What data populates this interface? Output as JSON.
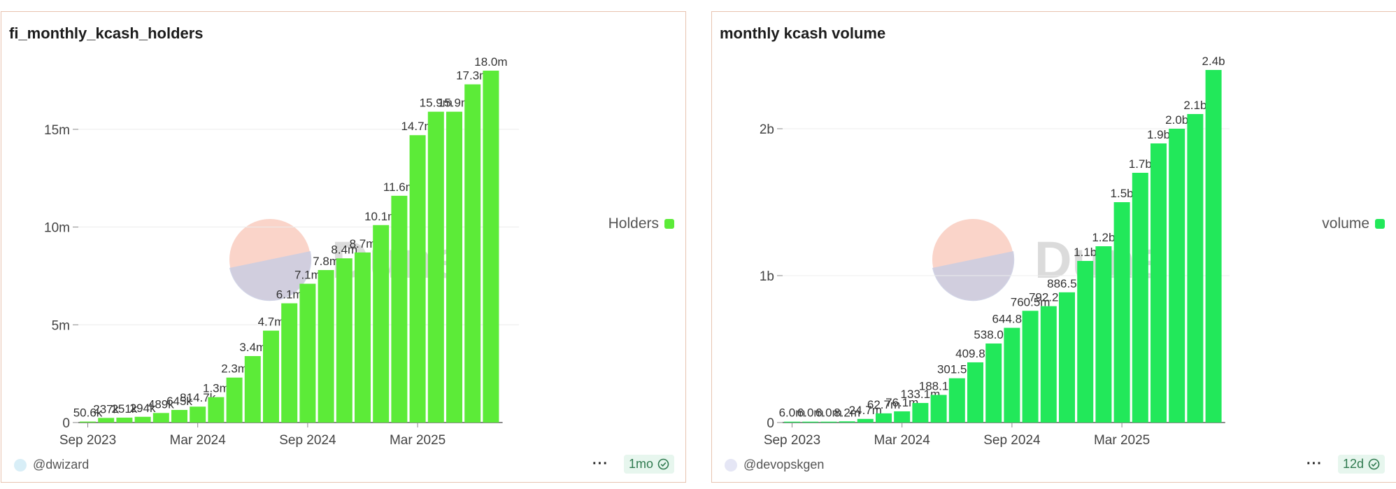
{
  "panels": [
    {
      "title": "fi_monthly_kcash_holders",
      "legend_label": "Holders",
      "user": "@dwizard",
      "age": "1mo",
      "bar_color": "#5ceb38",
      "avatar_color": "#d8eef7"
    },
    {
      "title": "monthly kcash volume",
      "legend_label": "volume",
      "user": "@devopskgen",
      "age": "12d",
      "bar_color": "#22e85a",
      "avatar_color": "#e5e6f5"
    }
  ],
  "watermark": "Dune",
  "chart_data": [
    {
      "type": "bar",
      "title": "fi_monthly_kcash_holders",
      "series": [
        {
          "name": "Holders",
          "values": [
            50600,
            237000,
            251000,
            294000,
            489000,
            645000,
            814700,
            1300000,
            2300000,
            3400000,
            4700000,
            6100000,
            7100000,
            7800000,
            8400000,
            8700000,
            10100000,
            11600000,
            14700000,
            15900000,
            15900000,
            17300000,
            18000000
          ]
        }
      ],
      "categories": [
        "2023-09",
        "2023-10",
        "2023-11",
        "2023-12",
        "2024-01",
        "2024-02",
        "2024-03",
        "2024-04",
        "2024-05",
        "2024-06",
        "2024-07",
        "2024-08",
        "2024-09",
        "2024-10",
        "2024-11",
        "2024-12",
        "2025-01",
        "2025-02",
        "2025-03",
        "2025-04",
        "2025-05",
        "2025-06",
        "2025-07"
      ],
      "labels": [
        "50.6k",
        "237k",
        "251k",
        "294k",
        "489k",
        "645k",
        "814.7k",
        "1.3m",
        "2.3m",
        "3.4m",
        "4.7m",
        "6.1m",
        "7.1m",
        "7.8m",
        "8.4m",
        "8.7m",
        "10.1m",
        "11.6m",
        "14.7m",
        "15.9m",
        "15.9m",
        "17.3m",
        "18.0m"
      ],
      "x_tick_labels": [
        "Sep 2023",
        "Mar 2024",
        "Sep 2024",
        "Mar 2025"
      ],
      "x_tick_index": [
        0,
        6,
        12,
        18
      ],
      "y_ticks": [
        0,
        5000000,
        10000000,
        15000000
      ],
      "y_tick_labels": [
        "0",
        "5m",
        "10m",
        "15m"
      ],
      "ylim": [
        0,
        18000000
      ],
      "grid": true,
      "legend_position": "right"
    },
    {
      "type": "bar",
      "title": "monthly kcash volume",
      "series": [
        {
          "name": "volume",
          "values": [
            6000000,
            6000000,
            6000000,
            8200000,
            24700000,
            62700000,
            76100000,
            133100000,
            188100000,
            301500000,
            409800000,
            538000000,
            644800000,
            760500000,
            792200000,
            886500000,
            1100000000,
            1200000000,
            1500000000,
            1700000000,
            1900000000,
            2000000000,
            2100000000,
            2400000000
          ]
        }
      ],
      "categories": [
        "2023-09",
        "2023-10",
        "2023-11",
        "2023-12",
        "2024-01",
        "2024-02",
        "2024-03",
        "2024-04",
        "2024-05",
        "2024-06",
        "2024-07",
        "2024-08",
        "2024-09",
        "2024-10",
        "2024-11",
        "2024-12",
        "2025-01",
        "2025-02",
        "2025-03",
        "2025-04",
        "2025-05",
        "2025-06",
        "2025-07",
        "2025-08"
      ],
      "labels": [
        "6.0m",
        "6.0m",
        "6.0m",
        "8.2m",
        "24.7m",
        "62.7m",
        "76.1m",
        "133.1m",
        "188.1m",
        "301.5m",
        "409.8m",
        "538.0m",
        "644.8m",
        "760.5m",
        "792.2m",
        "886.5m",
        "1.1b",
        "1.2b",
        "1.5b",
        "1.7b",
        "1.9b",
        "2.0b",
        "2.1b",
        "2.4b"
      ],
      "x_tick_labels": [
        "Sep 2023",
        "Mar 2024",
        "Sep 2024",
        "Mar 2025"
      ],
      "x_tick_index": [
        0,
        6,
        12,
        18
      ],
      "y_ticks": [
        0,
        1000000000,
        2000000000
      ],
      "y_tick_labels": [
        "0",
        "1b",
        "2b"
      ],
      "ylim": [
        0,
        2400000000
      ],
      "grid": true,
      "legend_position": "right"
    }
  ]
}
